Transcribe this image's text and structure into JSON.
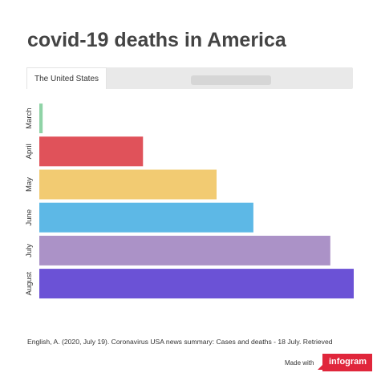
{
  "title": "covid-19 deaths in America",
  "tabs": [
    {
      "label": "The United States",
      "active": true
    },
    {
      "label": "",
      "active": false
    }
  ],
  "source_text": "English, A. (2020, July 19). Coronavirus USA news summary: Cases and deaths - 18 July. Retrieved",
  "branding": {
    "made_with": "Made with",
    "brand": "infogram",
    "brand_color": "#e0263b"
  },
  "chart_data": {
    "type": "bar",
    "orientation": "horizontal",
    "categories": [
      "March",
      "April",
      "May",
      "June",
      "July",
      "August"
    ],
    "values": [
      2000,
      62000,
      106000,
      128000,
      174000,
      188000
    ],
    "colors": [
      "#8fd3a6",
      "#e0525a",
      "#f2cb72",
      "#5db8e6",
      "#ab92c7",
      "#6b52d6"
    ],
    "xlim": [
      0,
      188000
    ],
    "xticks": [
      20000,
      40000,
      60000,
      80000,
      100000,
      120000,
      140000,
      160000,
      180000
    ],
    "grid": false,
    "legend": "none"
  }
}
